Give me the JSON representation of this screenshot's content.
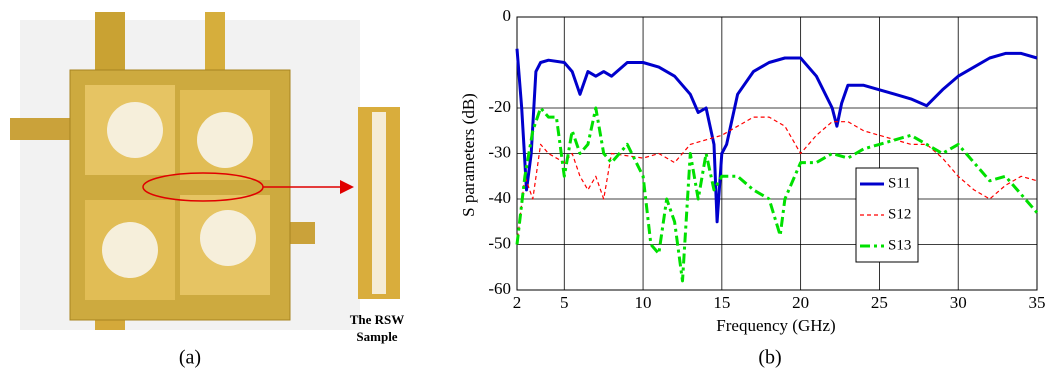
{
  "figure": {
    "panel_a": {
      "caption": "(a)",
      "inset_label": [
        "The RSW",
        "Sample"
      ]
    },
    "panel_b": {
      "caption": "(b)"
    }
  },
  "chart_data": {
    "type": "line",
    "x_label": "Frequency (GHz)",
    "y_label": "S parameters (dB)",
    "xlim": [
      2,
      35
    ],
    "xticks": [
      2,
      5,
      10,
      15,
      20,
      25,
      30,
      35
    ],
    "ylim": [
      -60,
      0
    ],
    "yticks": [
      -60,
      -50,
      -40,
      -30,
      -20,
      0
    ],
    "grid": true,
    "legend": "right",
    "series": [
      {
        "name": "S11",
        "color": "#0000cc",
        "dash": "solid",
        "x": [
          2,
          2.3,
          2.6,
          2.9,
          3.2,
          3.5,
          4,
          5,
          5.5,
          6,
          6.5,
          7,
          7.5,
          8,
          9,
          10,
          11,
          12,
          13,
          13.5,
          14,
          14.5,
          14.7,
          15,
          15.3,
          16,
          17,
          18,
          19,
          20,
          21,
          22,
          22.3,
          22.6,
          23,
          24,
          25,
          26,
          27,
          28,
          29,
          30,
          31,
          32,
          33,
          34,
          35
        ],
        "values": [
          -7,
          -20,
          -38,
          -30,
          -12,
          -10,
          -9.5,
          -10,
          -12,
          -17,
          -12,
          -13,
          -12,
          -13,
          -10,
          -10,
          -11,
          -13,
          -17,
          -21,
          -20,
          -28,
          -45,
          -30,
          -28,
          -17,
          -12,
          -10,
          -9,
          -9,
          -13,
          -20,
          -24,
          -19,
          -15,
          -15,
          -16,
          -17,
          -18,
          -19.5,
          -16,
          -13,
          -11,
          -9,
          -8,
          -8,
          -9
        ]
      },
      {
        "name": "S12",
        "color": "#ff0000",
        "dash": "dashed",
        "x": [
          2,
          2.5,
          3,
          3.5,
          4,
          5,
          5.5,
          6,
          6.5,
          7,
          7.5,
          8,
          10,
          11,
          12,
          13,
          14,
          15,
          16,
          17,
          18,
          19,
          20,
          21,
          22,
          23,
          24,
          25,
          26,
          27,
          28,
          29,
          30,
          31,
          32,
          33,
          34,
          35
        ],
        "values": [
          -50,
          -35,
          -40,
          -28,
          -30,
          -32,
          -30,
          -35,
          -38,
          -35,
          -40,
          -30,
          -31,
          -30,
          -32,
          -28,
          -27,
          -26,
          -24,
          -22,
          -22,
          -24,
          -30,
          -26,
          -23,
          -23,
          -25,
          -26,
          -27,
          -28,
          -28,
          -31,
          -35,
          -38,
          -40,
          -37,
          -35,
          -36
        ]
      },
      {
        "name": "S13",
        "color": "#00e000",
        "dash": "dashdot",
        "x": [
          2,
          2.5,
          3,
          3.5,
          4,
          4.5,
          5,
          5.5,
          6,
          6.5,
          7,
          7.5,
          8,
          9,
          10,
          10.5,
          11,
          11.5,
          12,
          12.5,
          13,
          13.5,
          14,
          14.5,
          15,
          16,
          17,
          18,
          18.7,
          19,
          20,
          21,
          22,
          23,
          24,
          25,
          26,
          27,
          28,
          29,
          30,
          31,
          32,
          33,
          34,
          35
        ],
        "values": [
          -50,
          -35,
          -25,
          -20,
          -22,
          -22,
          -35,
          -25,
          -30,
          -28,
          -20,
          -30,
          -32,
          -28,
          -35,
          -50,
          -52,
          -40,
          -45,
          -58,
          -30,
          -40,
          -30,
          -38,
          -35,
          -35,
          -38,
          -40,
          -48,
          -40,
          -32,
          -32,
          -30,
          -31,
          -29,
          -28,
          -27,
          -26,
          -28,
          -30,
          -28,
          -32,
          -36,
          -35,
          -39,
          -43
        ]
      }
    ]
  }
}
